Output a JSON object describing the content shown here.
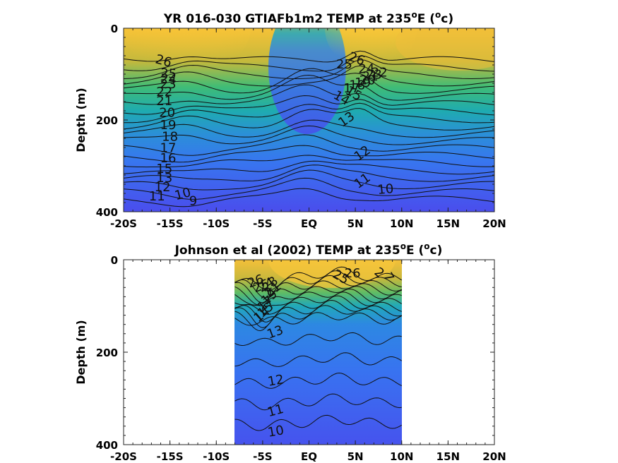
{
  "chart_data": [
    {
      "type": "heatmap",
      "title_main": "YR 016-030 GTIAFb1m2 TEMP at 235",
      "title_sup": "o",
      "title_mid": "E (",
      "title_sup2": "o",
      "title_end": "c)",
      "ylabel": "Depth (m)",
      "xlim": [
        -20,
        20
      ],
      "ylim": [
        400,
        0
      ],
      "xticks": [
        "-20S",
        "-15S",
        "-10S",
        "-5S",
        "EQ",
        "5N",
        "10N",
        "15N",
        "20N"
      ],
      "yticks": [
        "0",
        "200",
        "400"
      ],
      "data_extent_x": [
        -20,
        20
      ],
      "colormap": "parula",
      "contour_labels": [
        {
          "text": "26",
          "x": -15.8,
          "y": 80,
          "rot": 15
        },
        {
          "text": "25",
          "x": -15.2,
          "y": 108,
          "rot": 5
        },
        {
          "text": "24",
          "x": -15.2,
          "y": 120,
          "rot": 5
        },
        {
          "text": "23",
          "x": -15.2,
          "y": 131,
          "rot": 0
        },
        {
          "text": "22",
          "x": -15.6,
          "y": 148,
          "rot": 0
        },
        {
          "text": "21",
          "x": -15.6,
          "y": 168,
          "rot": 0
        },
        {
          "text": "20",
          "x": -15.3,
          "y": 193,
          "rot": 0
        },
        {
          "text": "19",
          "x": -15.2,
          "y": 220,
          "rot": 0
        },
        {
          "text": "18",
          "x": -15.0,
          "y": 245,
          "rot": 0
        },
        {
          "text": "17",
          "x": -15.2,
          "y": 270,
          "rot": 0
        },
        {
          "text": "16",
          "x": -15.2,
          "y": 292,
          "rot": 0
        },
        {
          "text": "15",
          "x": -15.6,
          "y": 315,
          "rot": 0
        },
        {
          "text": "13",
          "x": -15.6,
          "y": 335,
          "rot": 0
        },
        {
          "text": "12",
          "x": -15.8,
          "y": 355,
          "rot": 0
        },
        {
          "text": "11",
          "x": -16.4,
          "y": 375,
          "rot": 0
        },
        {
          "text": "10",
          "x": -13.5,
          "y": 370,
          "rot": -15
        },
        {
          "text": "9",
          "x": -12.5,
          "y": 385,
          "rot": 0
        },
        {
          "text": "26",
          "x": 5.0,
          "y": 75,
          "rot": 20
        },
        {
          "text": "25",
          "x": 3.8,
          "y": 88,
          "rot": 0
        },
        {
          "text": "24",
          "x": 6.2,
          "y": 98,
          "rot": 0
        },
        {
          "text": "23",
          "x": 7.0,
          "y": 110,
          "rot": 0
        },
        {
          "text": "22",
          "x": 7.6,
          "y": 105,
          "rot": 0
        },
        {
          "text": "21",
          "x": 6.6,
          "y": 114,
          "rot": 0
        },
        {
          "text": "20",
          "x": 6.3,
          "y": 122,
          "rot": 0
        },
        {
          "text": "19",
          "x": 5.8,
          "y": 128,
          "rot": 0
        },
        {
          "text": "18",
          "x": 5.2,
          "y": 133,
          "rot": 0
        },
        {
          "text": "17",
          "x": 4.6,
          "y": 140,
          "rot": 0
        },
        {
          "text": "15",
          "x": 4.6,
          "y": 150,
          "rot": 30
        },
        {
          "text": "14",
          "x": 3.3,
          "y": 160,
          "rot": 30
        },
        {
          "text": "13",
          "x": 4.3,
          "y": 206,
          "rot": -35
        },
        {
          "text": "12",
          "x": 6.0,
          "y": 280,
          "rot": -35
        },
        {
          "text": "11",
          "x": 6.0,
          "y": 340,
          "rot": -35
        },
        {
          "text": "10",
          "x": 8.3,
          "y": 360,
          "rot": -5
        }
      ]
    },
    {
      "type": "heatmap",
      "title_main": "Johnson et al (2002) TEMP at 235",
      "title_sup": "o",
      "title_mid": "E (",
      "title_sup2": "o",
      "title_end": "c)",
      "ylabel": "Depth (m)",
      "xlim": [
        -20,
        20
      ],
      "ylim": [
        400,
        0
      ],
      "xticks": [
        "-20S",
        "-15S",
        "-10S",
        "-5S",
        "EQ",
        "5N",
        "10N",
        "15N",
        "20N"
      ],
      "yticks": [
        "0",
        "200",
        "400"
      ],
      "data_extent_x": [
        -8,
        10
      ],
      "colormap": "parula",
      "contour_labels": [
        {
          "text": "26",
          "x": -5.6,
          "y": 55,
          "rot": -20
        },
        {
          "text": "25",
          "x": -5.0,
          "y": 65,
          "rot": -20
        },
        {
          "text": "24",
          "x": -4.4,
          "y": 62,
          "rot": -30
        },
        {
          "text": "23",
          "x": -3.9,
          "y": 60,
          "rot": -40
        },
        {
          "text": "21",
          "x": -3.6,
          "y": 72,
          "rot": -40
        },
        {
          "text": "19",
          "x": -4.0,
          "y": 88,
          "rot": -40
        },
        {
          "text": "17",
          "x": -4.4,
          "y": 102,
          "rot": -40
        },
        {
          "text": "15",
          "x": -4.4,
          "y": 115,
          "rot": -40
        },
        {
          "text": "14",
          "x": -4.8,
          "y": 125,
          "rot": -40
        },
        {
          "text": "13",
          "x": -3.5,
          "y": 165,
          "rot": -20
        },
        {
          "text": "12",
          "x": -3.5,
          "y": 270,
          "rot": -10
        },
        {
          "text": "11",
          "x": -3.5,
          "y": 335,
          "rot": -15
        },
        {
          "text": "10",
          "x": -3.5,
          "y": 380,
          "rot": -10
        },
        {
          "text": "25",
          "x": 3.2,
          "y": 45,
          "rot": 30
        },
        {
          "text": "26",
          "x": 4.7,
          "y": 38,
          "rot": 0
        },
        {
          "text": "2",
          "x": 7.3,
          "y": 35,
          "rot": 40
        },
        {
          "text": "7",
          "x": 8.2,
          "y": 42,
          "rot": 60
        }
      ]
    }
  ]
}
